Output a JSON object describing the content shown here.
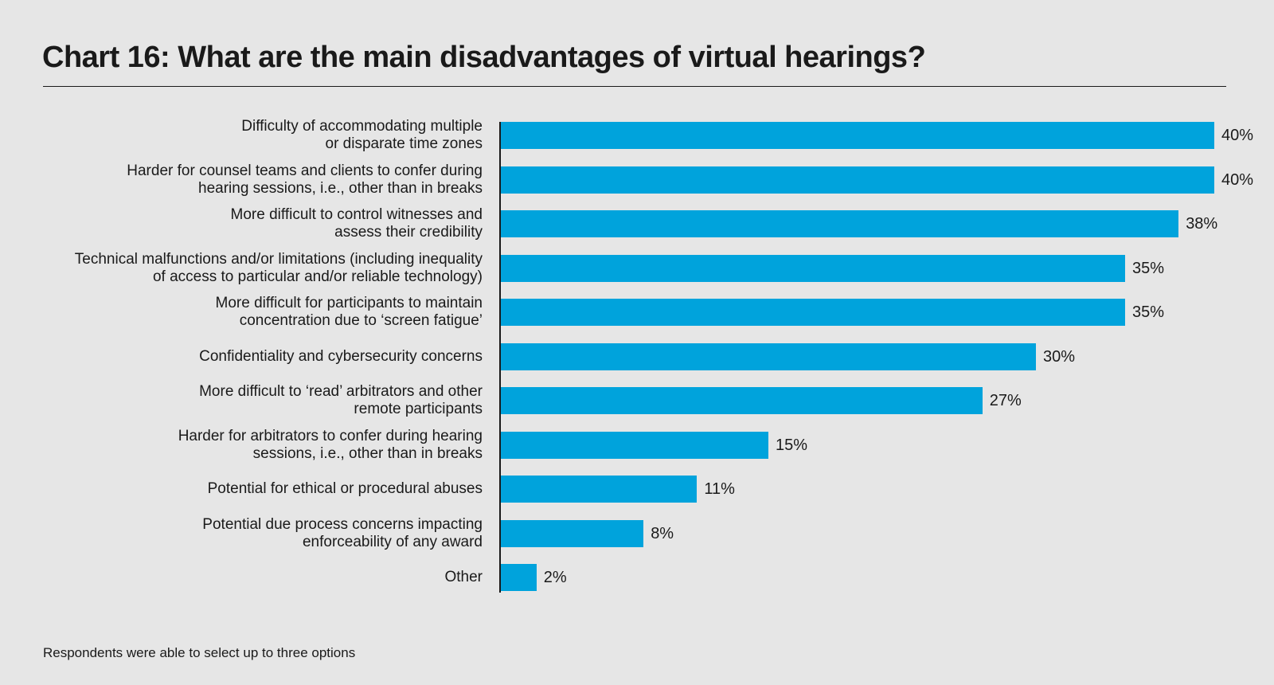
{
  "chart_data": {
    "type": "bar",
    "orientation": "horizontal",
    "title": "Chart 16: What are the main disadvantages of virtual hearings?",
    "xlabel": "",
    "ylabel": "",
    "xlim": [
      0,
      40
    ],
    "grid": false,
    "bar_color": "#00a3dc",
    "categories": [
      "Difficulty of accommodating multiple\nor disparate time zones",
      "Harder for counsel teams and clients to confer during\nhearing sessions, i.e., other than in breaks",
      "More difficult to control witnesses and\nassess their credibility",
      "Technical malfunctions and/or limitations (including inequality\nof access to particular and/or reliable technology)",
      "More difficult for participants to maintain\nconcentration due to ‘screen fatigue’",
      "Confidentiality and cybersecurity concerns",
      "More difficult to ‘read’ arbitrators and other\nremote participants",
      "Harder for arbitrators to confer during hearing\nsessions, i.e., other than in breaks",
      "Potential for ethical or procedural abuses",
      "Potential due process concerns impacting\nenforceability of any award",
      "Other"
    ],
    "values": [
      40,
      40,
      38,
      35,
      35,
      30,
      27,
      15,
      11,
      8,
      2
    ],
    "value_labels": [
      "40%",
      "40%",
      "38%",
      "35%",
      "35%",
      "30%",
      "27%",
      "15%",
      "11%",
      "8%",
      "2%"
    ],
    "footnote": "Respondents were able to select up to three options"
  }
}
